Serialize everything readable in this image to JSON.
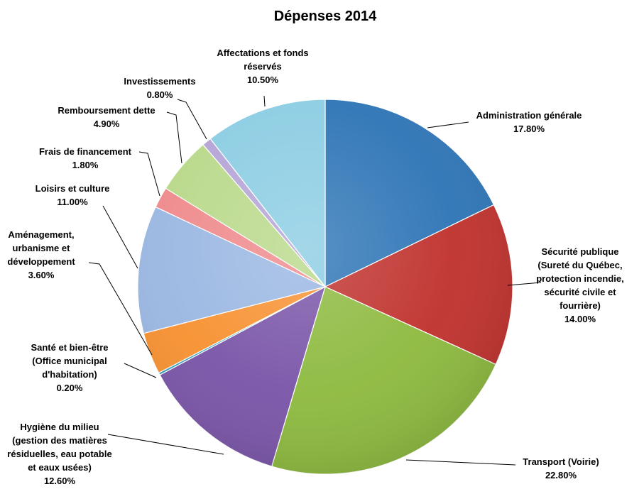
{
  "chart_data": {
    "type": "pie",
    "title": "Dépenses 2014",
    "slices": [
      {
        "name": "administration-generale",
        "label": [
          "Administration générale"
        ],
        "value_text": "17.80%",
        "value": 17.8,
        "color": "#2E75B6"
      },
      {
        "name": "securite-publique",
        "label": [
          "Sécurité publique",
          "(Sureté du Québec,",
          "protection incendie,",
          "sécurité civile et",
          "fourrière)"
        ],
        "value_text": "14.00%",
        "value": 14.0,
        "color": "#C0322E"
      },
      {
        "name": "transport",
        "label": [
          "Transport (Voirie)"
        ],
        "value_text": "22.80%",
        "value": 22.8,
        "color": "#8DBA3F"
      },
      {
        "name": "hygiene-du-milieu",
        "label": [
          "Hygiène du milieu",
          "(gestion des matières",
          "résiduelles, eau potable",
          "et eaux usées)"
        ],
        "value_text": "12.60%",
        "value": 12.6,
        "color": "#7A55A8"
      },
      {
        "name": "sante-et-bien-etre",
        "label": [
          "Santé et bien-être",
          "(Office municipal",
          "d'habitation)"
        ],
        "value_text": "0.20%",
        "value": 0.2,
        "color": "#2E9EBE"
      },
      {
        "name": "amenagement",
        "label": [
          "Aménagement,",
          "urbanisme et",
          "développement"
        ],
        "value_text": "3.60%",
        "value": 3.6,
        "color": "#F79131"
      },
      {
        "name": "loisirs-et-culture",
        "label": [
          "Loisirs et culture"
        ],
        "value_text": "11.00%",
        "value": 11.0,
        "color": "#9AB7E2"
      },
      {
        "name": "frais-de-financement",
        "label": [
          "Frais de financement"
        ],
        "value_text": "1.80%",
        "value": 1.8,
        "color": "#EF8A8C"
      },
      {
        "name": "remboursement-dette",
        "label": [
          "Remboursement dette"
        ],
        "value_text": "4.90%",
        "value": 4.9,
        "color": "#B9D98A"
      },
      {
        "name": "investissements",
        "label": [
          "Investissements"
        ],
        "value_text": "0.80%",
        "value": 0.8,
        "color": "#B5A4D6"
      },
      {
        "name": "affectations-et-fonds-reserves",
        "label": [
          "Affectations et fonds",
          "réservés"
        ],
        "value_text": "10.50%",
        "value": 10.5,
        "color": "#8CCDE3"
      }
    ]
  }
}
